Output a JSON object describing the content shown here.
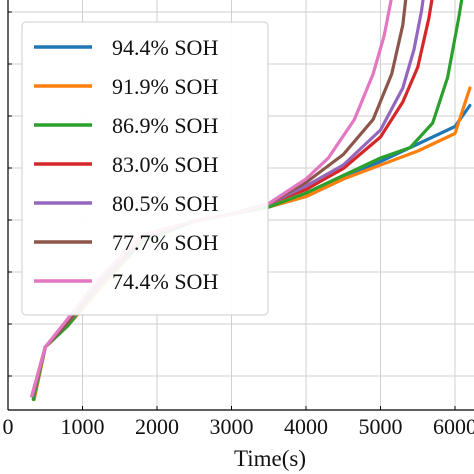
{
  "chart_data": {
    "type": "line",
    "title": "",
    "xlabel": "Time(s)",
    "ylabel": "",
    "xlim": [
      0,
      6200
    ],
    "x_ticks": [
      0,
      1000,
      2000,
      3000,
      4000,
      5000,
      6000
    ],
    "x_tick_labels": [
      "0",
      "1000",
      "2000",
      "3000",
      "4000",
      "5000",
      "6000"
    ],
    "grid": true,
    "legend_position": "top-left",
    "series": [
      {
        "name": "94.4% SOH",
        "color": "#1f77b4",
        "x": [
          350,
          500,
          800,
          1200,
          1800,
          2500,
          3000,
          3500,
          4000,
          4500,
          5000,
          5500,
          6000,
          6200
        ],
        "y": [
          0.03,
          0.18,
          0.24,
          0.34,
          0.48,
          0.54,
          0.56,
          0.58,
          0.61,
          0.66,
          0.71,
          0.76,
          0.81,
          0.87
        ]
      },
      {
        "name": "91.9% SOH",
        "color": "#ff7f0e",
        "x": [
          350,
          500,
          800,
          1200,
          1800,
          2500,
          3000,
          3500,
          4000,
          4500,
          5000,
          5500,
          6000,
          6200
        ],
        "y": [
          0.03,
          0.18,
          0.24,
          0.34,
          0.48,
          0.54,
          0.56,
          0.58,
          0.61,
          0.66,
          0.7,
          0.74,
          0.79,
          0.92
        ]
      },
      {
        "name": "86.9% SOH",
        "color": "#2ca02c",
        "x": [
          340,
          500,
          800,
          1200,
          1800,
          2500,
          3000,
          3500,
          4000,
          4500,
          5000,
          5400,
          5700,
          5900,
          6050,
          6150
        ],
        "y": [
          0.03,
          0.18,
          0.24,
          0.35,
          0.48,
          0.54,
          0.56,
          0.58,
          0.62,
          0.67,
          0.72,
          0.75,
          0.82,
          0.95,
          1.12,
          1.25
        ]
      },
      {
        "name": "83.0% SOH",
        "color": "#d62728",
        "x": [
          330,
          500,
          800,
          1200,
          1800,
          2500,
          3000,
          3500,
          4000,
          4500,
          5000,
          5300,
          5500,
          5650,
          5750
        ],
        "y": [
          0.04,
          0.18,
          0.25,
          0.35,
          0.49,
          0.54,
          0.56,
          0.59,
          0.63,
          0.69,
          0.78,
          0.88,
          0.98,
          1.12,
          1.25
        ]
      },
      {
        "name": "80.5% SOH",
        "color": "#9467bd",
        "x": [
          330,
          500,
          800,
          1200,
          1800,
          2500,
          3000,
          3500,
          4000,
          4500,
          5000,
          5300,
          5450,
          5550,
          5620
        ],
        "y": [
          0.04,
          0.18,
          0.25,
          0.35,
          0.49,
          0.54,
          0.56,
          0.59,
          0.64,
          0.7,
          0.8,
          0.92,
          1.03,
          1.14,
          1.25
        ]
      },
      {
        "name": "77.7% SOH",
        "color": "#8c564b",
        "x": [
          320,
          500,
          800,
          1200,
          1800,
          2500,
          3000,
          3500,
          4000,
          4500,
          4900,
          5150,
          5300,
          5380
        ],
        "y": [
          0.04,
          0.18,
          0.25,
          0.36,
          0.49,
          0.54,
          0.56,
          0.59,
          0.65,
          0.73,
          0.83,
          0.96,
          1.1,
          1.25
        ]
      },
      {
        "name": "74.4% SOH",
        "color": "#e377c2",
        "x": [
          320,
          500,
          800,
          1200,
          1800,
          2500,
          3000,
          3500,
          4000,
          4300,
          4650,
          4900,
          5050,
          5150,
          5230
        ],
        "y": [
          0.04,
          0.18,
          0.26,
          0.37,
          0.5,
          0.54,
          0.56,
          0.59,
          0.66,
          0.72,
          0.83,
          0.96,
          1.07,
          1.18,
          1.25
        ]
      }
    ]
  }
}
